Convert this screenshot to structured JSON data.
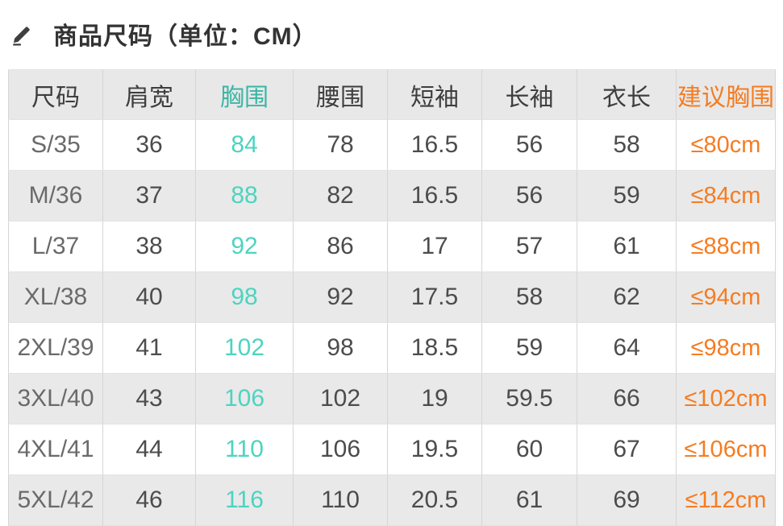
{
  "page": {
    "title": "商品尺码（单位：CM）",
    "title_icon": "pencil-edit-icon"
  },
  "colors": {
    "teal": "#4cd4c0",
    "teal_header": "#3cb5a6",
    "orange": "#f57c22",
    "header_bg": "#e8e8e8",
    "alt_row_bg": "#e9e9e9",
    "header_text": "#3e3e3e",
    "num_text": "#4c4c4c",
    "size_text": "#6a6a6a",
    "border_v": "#d5d5d5",
    "border_h": "#e3e3e3",
    "icon_color": "#3f3f3f"
  },
  "chart_data": {
    "type": "table",
    "title": "商品尺码（单位：CM）",
    "unit": "CM",
    "columns": [
      {
        "key": "size",
        "label": "尺码",
        "color": "default"
      },
      {
        "key": "shoulder",
        "label": "肩宽",
        "color": "default"
      },
      {
        "key": "bust",
        "label": "胸围",
        "color": "teal"
      },
      {
        "key": "waist",
        "label": "腰围",
        "color": "default"
      },
      {
        "key": "short-sleeve",
        "label": "短袖",
        "color": "default"
      },
      {
        "key": "long-sleeve",
        "label": "长袖",
        "color": "default"
      },
      {
        "key": "length",
        "label": "衣长",
        "color": "default"
      },
      {
        "key": "suggested-bust",
        "label": "建议胸围",
        "color": "orange"
      }
    ],
    "rows": [
      [
        "S/35",
        "36",
        "84",
        "78",
        "16.5",
        "56",
        "58",
        "≤80cm"
      ],
      [
        "M/36",
        "37",
        "88",
        "82",
        "16.5",
        "56",
        "59",
        "≤84cm"
      ],
      [
        "L/37",
        "38",
        "92",
        "86",
        "17",
        "57",
        "61",
        "≤88cm"
      ],
      [
        "XL/38",
        "40",
        "98",
        "92",
        "17.5",
        "58",
        "62",
        "≤94cm"
      ],
      [
        "2XL/39",
        "41",
        "102",
        "98",
        "18.5",
        "59",
        "64",
        "≤98cm"
      ],
      [
        "3XL/40",
        "43",
        "106",
        "102",
        "19",
        "59.5",
        "66",
        "≤102cm"
      ],
      [
        "4XL/41",
        "44",
        "110",
        "106",
        "19.5",
        "60",
        "67",
        "≤106cm"
      ],
      [
        "5XL/42",
        "46",
        "116",
        "110",
        "20.5",
        "61",
        "69",
        "≤112cm"
      ]
    ]
  }
}
